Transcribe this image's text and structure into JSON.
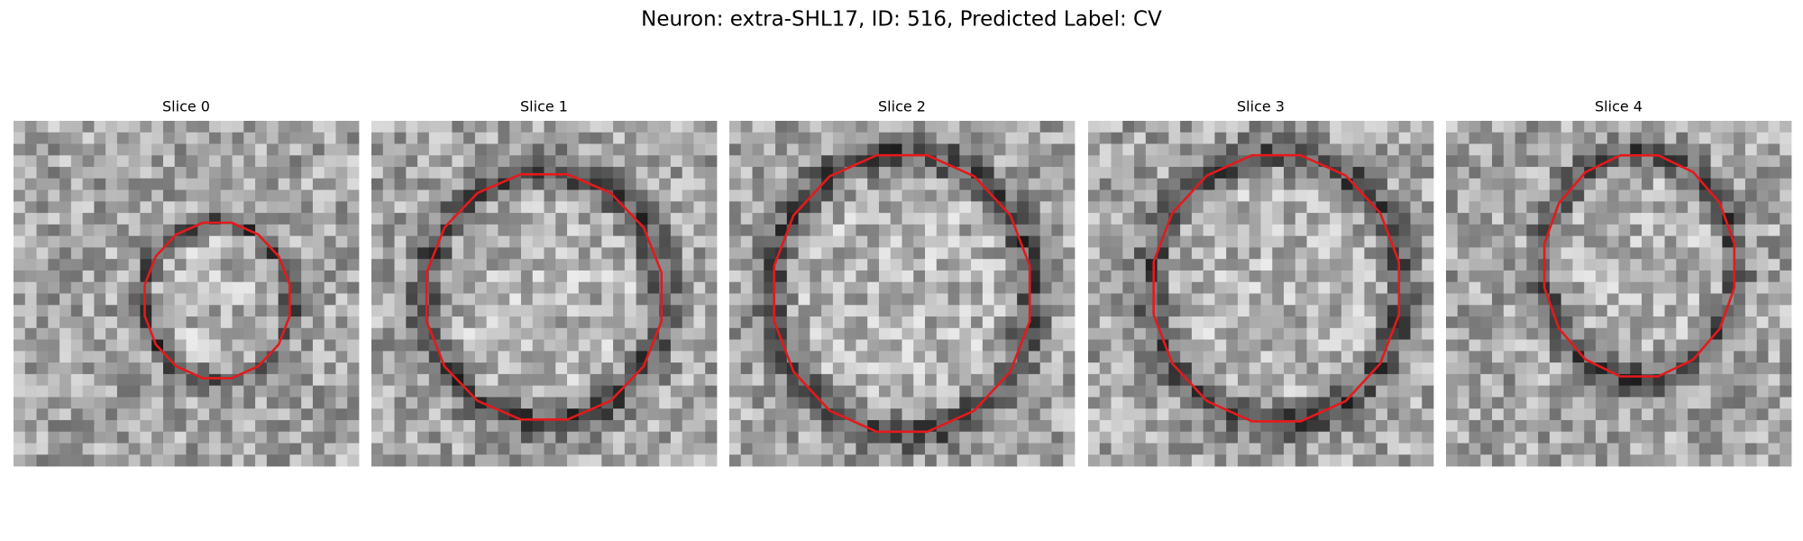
{
  "title": "Neuron: extra-SHL17, ID: 516, Predicted Label: CV",
  "panels": [
    {
      "title": "Slice 0"
    },
    {
      "title": "Slice 1"
    },
    {
      "title": "Slice 2"
    },
    {
      "title": "Slice 3"
    },
    {
      "title": "Slice 4"
    }
  ]
}
